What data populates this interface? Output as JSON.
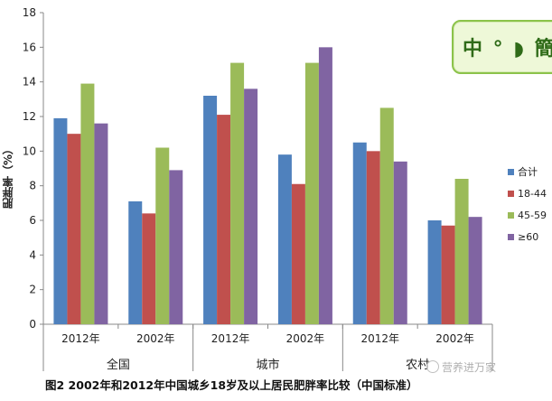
{
  "chart_data": {
    "type": "bar",
    "ylabel": "肥胖率（%）",
    "ylim": [
      0,
      18
    ],
    "yticks": [
      0,
      2,
      4,
      6,
      8,
      10,
      12,
      14,
      16,
      18
    ],
    "groups": [
      {
        "name": "全国",
        "years": [
          "2012年",
          "2002年"
        ]
      },
      {
        "name": "城市",
        "years": [
          "2012年",
          "2002年"
        ]
      },
      {
        "name": "农村",
        "years": [
          "2012年",
          "2002年"
        ]
      }
    ],
    "categories": [
      "全国 2012年",
      "全国 2002年",
      "城市 2012年",
      "城市 2002年",
      "农村 2012年",
      "农村 2002年"
    ],
    "series": [
      {
        "name": "合计",
        "color": "#4f81bd",
        "values": [
          11.9,
          7.1,
          13.2,
          9.8,
          10.5,
          6.0
        ]
      },
      {
        "name": "18-44",
        "color": "#c0504d",
        "values": [
          11.0,
          6.4,
          12.1,
          8.1,
          10.0,
          5.7
        ]
      },
      {
        "name": "45-59",
        "color": "#9bbb59",
        "values": [
          13.9,
          10.2,
          15.1,
          15.1,
          12.5,
          8.4
        ]
      },
      {
        "name": "≥60",
        "color": "#8064a2",
        "values": [
          11.6,
          8.9,
          13.6,
          16.0,
          9.4,
          6.2
        ]
      }
    ],
    "legend_position": "right",
    "grid": false
  },
  "caption": "图2 2002年和2012年中国城乡18岁及以上居民肥胖率比较（中国标准）",
  "badge_text": "中 ° ◗ 簡",
  "watermark": "营养进万家"
}
